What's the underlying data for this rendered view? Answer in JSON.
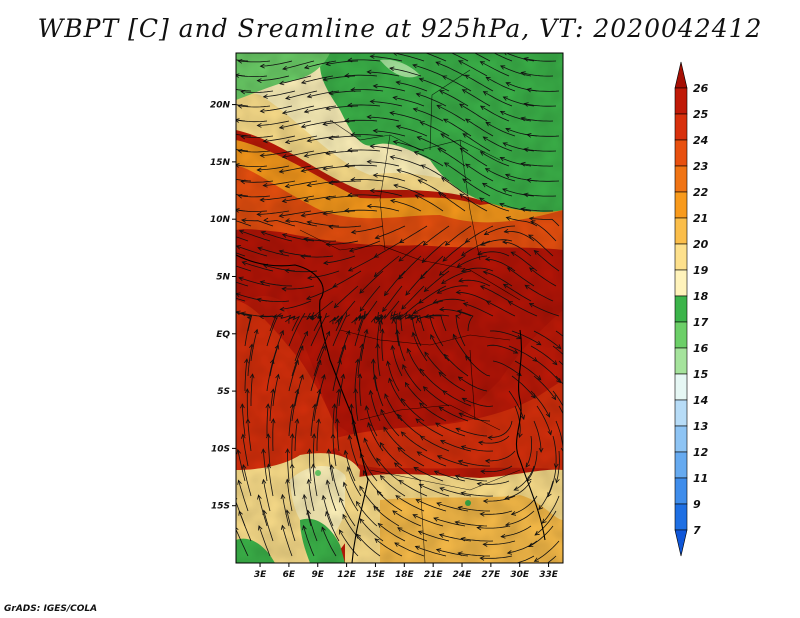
{
  "title": "WBPT [C] and Sreamline at 925hPa, VT: 2020042412",
  "footer": "GrADS: IGES/COLA",
  "map": {
    "variable": "Wet-bulb potential temperature",
    "units": "C",
    "level": "925hPa",
    "valid_time": "2020042412",
    "lat_ticks": [
      "20N",
      "15N",
      "10N",
      "5N",
      "EQ",
      "5S",
      "10S",
      "15S"
    ],
    "lat_values": [
      20,
      15,
      10,
      5,
      0,
      -5,
      -10,
      -15
    ],
    "lon_ticks": [
      "3E",
      "6E",
      "9E",
      "12E",
      "15E",
      "18E",
      "21E",
      "24E",
      "27E",
      "30E",
      "33E"
    ],
    "lon_values": [
      3,
      6,
      9,
      12,
      15,
      18,
      21,
      24,
      27,
      30,
      33
    ],
    "lat_range": [
      -20,
      24.5
    ],
    "lon_range": [
      0.5,
      34.5
    ]
  },
  "colorbar": {
    "labels": [
      "26",
      "25",
      "24",
      "23",
      "22",
      "21",
      "20",
      "19",
      "18",
      "17",
      "16",
      "15",
      "14",
      "13",
      "12",
      "11",
      "9",
      "7"
    ],
    "colors": [
      "#a50f04",
      "#c01a08",
      "#d8300c",
      "#e8500f",
      "#f07414",
      "#f89a1c",
      "#fbbe4a",
      "#fde08c",
      "#fff3bb",
      "#3cb44a",
      "#6ccf68",
      "#a5e39c",
      "#e6f7f4",
      "#b7dcf7",
      "#8ec4f4",
      "#66aaf0",
      "#3f8deb",
      "#1e6fe3",
      "#0f56d8"
    ]
  }
}
